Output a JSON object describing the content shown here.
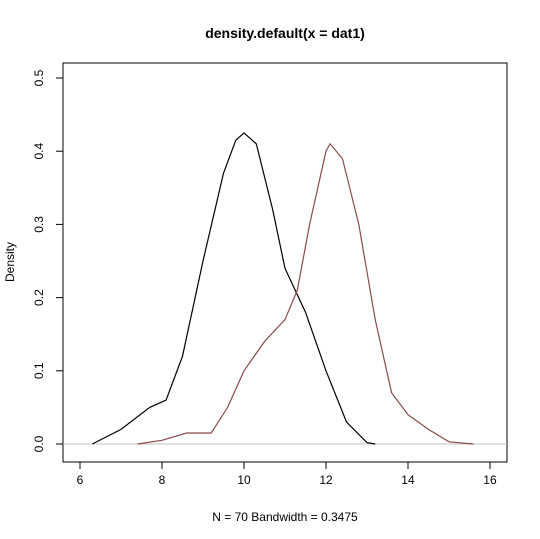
{
  "chart_data": {
    "type": "line",
    "title": "density.default(x = dat1)",
    "xlabel": "N = 70   Bandwidth = 0.3475",
    "ylabel": "Density",
    "xlim": [
      5.585,
      16.415
    ],
    "ylim": [
      -0.0246,
      0.5205
    ],
    "xticks": [
      6,
      8,
      10,
      12,
      14,
      16
    ],
    "yticks": [
      {
        "value": 0,
        "label": "0.0"
      },
      0.1,
      0.2,
      0.3,
      0.4,
      0.5
    ],
    "baseline_color": "#c0c0c0",
    "series": [
      {
        "color": "#000000",
        "x": [
          6.3,
          7.0,
          7.7,
          8.1,
          8.5,
          9.0,
          9.5,
          9.8,
          10.0,
          10.3,
          10.7,
          11.0,
          11.5,
          12.0,
          12.5,
          13.0,
          13.2
        ],
        "values": [
          0,
          0.02,
          0.05,
          0.06,
          0.12,
          0.25,
          0.37,
          0.415,
          0.425,
          0.41,
          0.32,
          0.24,
          0.18,
          0.1,
          0.03,
          0.002,
          0
        ]
      },
      {
        "color": "#8b4a4a",
        "x": [
          7.4,
          8.0,
          8.6,
          9.2,
          9.6,
          10.0,
          10.5,
          11.0,
          11.3,
          11.6,
          12.0,
          12.1,
          12.4,
          12.8,
          13.2,
          13.6,
          14.0,
          14.5,
          15.0,
          15.6
        ],
        "values": [
          0,
          0.005,
          0.015,
          0.015,
          0.05,
          0.1,
          0.14,
          0.17,
          0.21,
          0.3,
          0.4,
          0.41,
          0.39,
          0.3,
          0.17,
          0.07,
          0.04,
          0.02,
          0.003,
          0
        ]
      }
    ]
  }
}
